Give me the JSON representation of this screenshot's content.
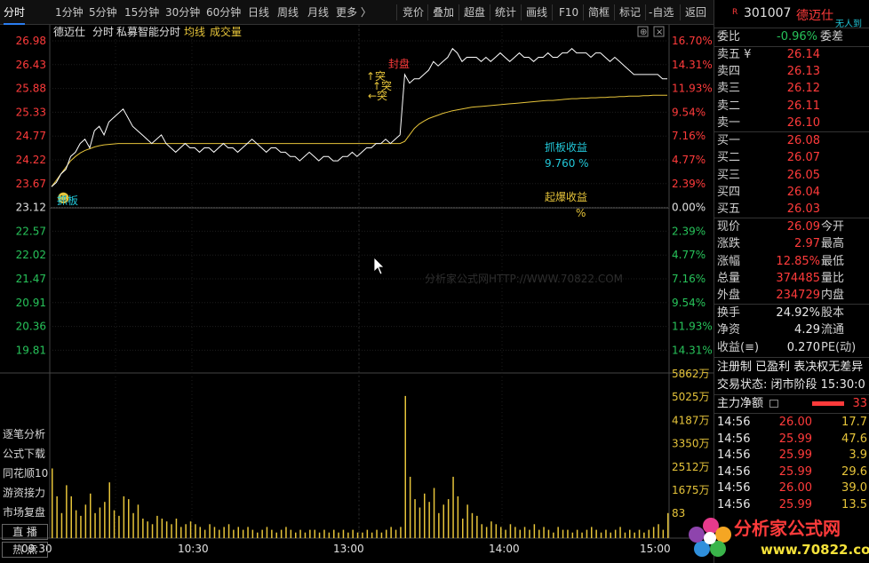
{
  "toolbar": {
    "tabs": [
      "分时",
      "1分钟",
      "5分钟",
      "15分钟",
      "30分钟",
      "60分钟",
      "日线",
      "周线",
      "月线",
      "更多 〉"
    ],
    "right": [
      "竞价",
      "叠加",
      "超盘",
      "统计",
      "画线",
      "F10",
      "简框",
      "标记",
      "-自选",
      "返回"
    ]
  },
  "chart": {
    "header": {
      "name": "德迈仕",
      "mode": "分时",
      "indicator": "私募智能分时",
      "avg_line": "均线",
      "volume": "成交量"
    },
    "price_ticks": [
      "26.98",
      "26.43",
      "25.88",
      "25.33",
      "24.77",
      "24.22",
      "23.67",
      "23.12",
      "22.57",
      "22.02",
      "21.47",
      "20.91",
      "20.36",
      "19.81"
    ],
    "pct_ticks": [
      "16.70%",
      "14.31%",
      "11.93%",
      "9.54%",
      "7.16%",
      "4.77%",
      "2.39%",
      "0.00%",
      "2.39%",
      "4.77%",
      "7.16%",
      "9.54%",
      "11.93%",
      "14.31%"
    ],
    "vol_ticks": [
      "5862万",
      "5025万",
      "4187万",
      "3350万",
      "2512万",
      "1675万",
      "83"
    ],
    "time_ticks": [
      "09:30",
      "10:30",
      "13:00",
      "14:00",
      "15:00"
    ],
    "annotations": {
      "grab_label": "抓板",
      "sealed_label": "封盘",
      "breakout_1": "↑突",
      "breakout_2": "↑突",
      "breakout_3": "←突",
      "grab_profit_label": "抓板收益",
      "grab_profit_value": "9.760 %",
      "explode_profit_label": "起爆收益",
      "explode_profit_value": "%",
      "watermark": "分析家公式网HTTP://WWW.70822.COM"
    },
    "left_menu": [
      "逐笔分析",
      "公式下载",
      "同花顺10",
      "游资接力",
      "市场复盘",
      "直 播",
      "热 点"
    ]
  },
  "chart_data": {
    "type": "line",
    "prev_close": 23.12,
    "ylim": [
      19.81,
      26.98
    ],
    "x_labels": [
      "09:30",
      "10:30",
      "13:00",
      "14:00",
      "15:00"
    ],
    "price": [
      23.6,
      23.7,
      23.9,
      24.0,
      24.3,
      24.4,
      24.6,
      24.7,
      24.5,
      24.9,
      25.0,
      24.8,
      25.1,
      25.2,
      25.3,
      25.4,
      25.2,
      25.0,
      24.9,
      24.8,
      24.7,
      24.6,
      24.7,
      24.8,
      24.6,
      24.5,
      24.4,
      24.5,
      24.6,
      24.5,
      24.5,
      24.4,
      24.5,
      24.5,
      24.4,
      24.5,
      24.6,
      24.5,
      24.5,
      24.4,
      24.5,
      24.6,
      24.7,
      24.6,
      24.5,
      24.4,
      24.5,
      24.5,
      24.4,
      24.4,
      24.3,
      24.3,
      24.2,
      24.3,
      24.4,
      24.3,
      24.2,
      24.3,
      24.3,
      24.2,
      24.2,
      24.3,
      24.3,
      24.4,
      24.3,
      24.4,
      24.5,
      24.5,
      24.6,
      24.6,
      24.7,
      24.6,
      24.7,
      24.8,
      26.2,
      26.0,
      26.1,
      26.1,
      26.2,
      26.3,
      26.5,
      26.4,
      26.5,
      26.6,
      26.8,
      26.7,
      26.5,
      26.6,
      26.6,
      26.6,
      26.5,
      26.6,
      26.5,
      26.6,
      26.7,
      26.6,
      26.5,
      26.6,
      26.7,
      26.6,
      26.6,
      26.5,
      26.6,
      26.6,
      26.7,
      26.6,
      26.6,
      26.7,
      26.7,
      26.8,
      26.7,
      26.7,
      26.7,
      26.6,
      26.7,
      26.7,
      26.6,
      26.5,
      26.6,
      26.5,
      26.4,
      26.3,
      26.2,
      26.2,
      26.2,
      26.2,
      26.2,
      26.2,
      26.1,
      26.1
    ],
    "avg": [
      23.6,
      23.75,
      23.9,
      24.05,
      24.2,
      24.3,
      24.38,
      24.44,
      24.48,
      24.52,
      24.55,
      24.57,
      24.58,
      24.59,
      24.6,
      24.6,
      24.6,
      24.6,
      24.6,
      24.6,
      24.6,
      24.6,
      24.6,
      24.6,
      24.6,
      24.6,
      24.6,
      24.6,
      24.6,
      24.6,
      24.6,
      24.6,
      24.6,
      24.6,
      24.6,
      24.6,
      24.6,
      24.6,
      24.6,
      24.6,
      24.6,
      24.6,
      24.6,
      24.6,
      24.6,
      24.6,
      24.6,
      24.6,
      24.6,
      24.6,
      24.6,
      24.6,
      24.6,
      24.6,
      24.6,
      24.6,
      24.6,
      24.6,
      24.6,
      24.6,
      24.6,
      24.6,
      24.6,
      24.6,
      24.6,
      24.6,
      24.6,
      24.6,
      24.6,
      24.6,
      24.6,
      24.6,
      24.6,
      24.6,
      24.65,
      24.8,
      24.95,
      25.05,
      25.12,
      25.18,
      25.22,
      25.26,
      25.3,
      25.33,
      25.36,
      25.38,
      25.4,
      25.42,
      25.44,
      25.45,
      25.46,
      25.47,
      25.48,
      25.49,
      25.5,
      25.51,
      25.52,
      25.53,
      25.54,
      25.55,
      25.56,
      25.57,
      25.58,
      25.59,
      25.6,
      25.6,
      25.61,
      25.62,
      25.63,
      25.64,
      25.64,
      25.65,
      25.65,
      25.66,
      25.66,
      25.67,
      25.67,
      25.68,
      25.68,
      25.69,
      25.69,
      25.7,
      25.7,
      25.7,
      25.71,
      25.71,
      25.72,
      25.72,
      25.72,
      25.72
    ],
    "volume": [
      2500,
      1500,
      900,
      1900,
      1500,
      1000,
      800,
      1200,
      1600,
      900,
      1100,
      1300,
      2000,
      1000,
      800,
      1500,
      1400,
      900,
      1200,
      700,
      600,
      500,
      800,
      700,
      600,
      500,
      700,
      400,
      500,
      600,
      500,
      400,
      300,
      500,
      400,
      300,
      400,
      500,
      300,
      400,
      300,
      400,
      300,
      200,
      300,
      400,
      300,
      200,
      300,
      400,
      300,
      200,
      300,
      200,
      300,
      300,
      200,
      300,
      200,
      300,
      200,
      300,
      200,
      300,
      200,
      200,
      300,
      200,
      300,
      200,
      300,
      400,
      300,
      400,
      5100,
      2200,
      1400,
      1100,
      1600,
      1300,
      1800,
      900,
      1200,
      1400,
      2200,
      1500,
      700,
      1200,
      900,
      800,
      500,
      400,
      600,
      500,
      400,
      300,
      500,
      400,
      300,
      400,
      300,
      500,
      300,
      400,
      300,
      200,
      400,
      300,
      300,
      200,
      300,
      200,
      300,
      400,
      300,
      200,
      300,
      200,
      300,
      400,
      200,
      300,
      200,
      300,
      200,
      300,
      400,
      500,
      300,
      900
    ],
    "vol_max": 5862
  },
  "panel": {
    "header": {
      "code": "301007",
      "name": "德迈仕",
      "tag": "无人到"
    },
    "weibi": {
      "label": "委比",
      "value": "-0.96%",
      "label2": "委差"
    },
    "asks": [
      {
        "label": "卖五 ¥",
        "price": "26.14"
      },
      {
        "label": "卖四",
        "price": "26.13"
      },
      {
        "label": "卖三",
        "price": "26.12"
      },
      {
        "label": "卖二",
        "price": "26.11"
      },
      {
        "label": "卖一",
        "price": "26.10"
      }
    ],
    "bids": [
      {
        "label": "买一",
        "price": "26.08"
      },
      {
        "label": "买二",
        "price": "26.07"
      },
      {
        "label": "买三",
        "price": "26.05"
      },
      {
        "label": "买四",
        "price": "26.04"
      },
      {
        "label": "买五",
        "price": "26.03"
      }
    ],
    "quote": [
      {
        "l1": "现价",
        "v1": "26.09",
        "l2": "今开"
      },
      {
        "l1": "涨跌",
        "v1": "2.97",
        "l2": "最高"
      },
      {
        "l1": "涨幅",
        "v1": "12.85%",
        "l2": "最低"
      },
      {
        "l1": "总量",
        "v1": "374485",
        "l2": "量比"
      },
      {
        "l1": "外盘",
        "v1": "234729",
        "l2": "内盘"
      }
    ],
    "stats": [
      {
        "l1": "换手",
        "v1": "24.92%",
        "l2": "股本"
      },
      {
        "l1": "净资",
        "v1": "4.29",
        "l2": "流通"
      },
      {
        "l1": "收益(≡)",
        "v1": "0.270",
        "l2": "PE(动)"
      }
    ],
    "tags_line": "注册制 已盈利 表决权无差异",
    "status_line": "交易状态: 闭市阶段 15:30:0",
    "main_flow": {
      "label": "主力净额",
      "value": "33"
    },
    "ticks": [
      {
        "time": "14:56",
        "price": "26.00",
        "vol": "17.7"
      },
      {
        "time": "14:56",
        "price": "25.99",
        "vol": "47.6"
      },
      {
        "time": "14:56",
        "price": "25.99",
        "vol": "3.9"
      },
      {
        "time": "14:56",
        "price": "25.99",
        "vol": "29.6"
      },
      {
        "time": "14:56",
        "price": "26.00",
        "vol": "39.0"
      },
      {
        "time": "14:56",
        "price": "25.99",
        "vol": "13.5"
      }
    ]
  },
  "logo": {
    "text": "分析家公式网",
    "url": "www.70822.com"
  },
  "colors": {
    "up": "#ff3b3b",
    "down": "#27c35a",
    "price_line": "#ffffff",
    "avg_line": "#e6c43a",
    "volume": "#e6c43a",
    "cyan": "#22c7d8"
  }
}
